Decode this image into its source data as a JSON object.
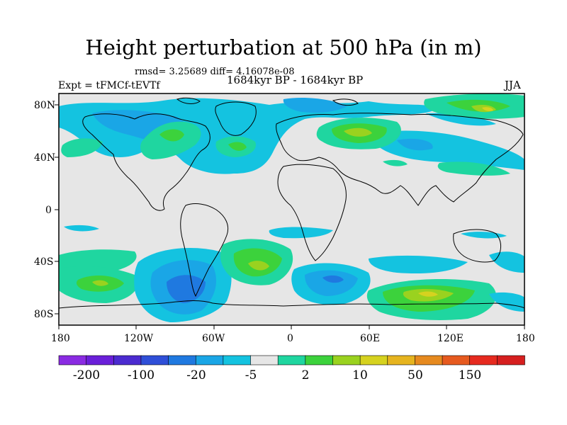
{
  "title": "Height perturbation at 500 hPa (in m)",
  "stats": "rmsd= 3.25689  diff= 4.16078e-08",
  "expt": "Expt = tFMCf-tEVTf",
  "period": "1684kyr BP - 1684kyr BP",
  "season": "JJA",
  "lat_ticks": [
    "80N",
    "40N",
    "0",
    "40S",
    "80S"
  ],
  "lon_ticks": [
    "180",
    "120W",
    "60W",
    "0",
    "60E",
    "120E",
    "180"
  ],
  "colorbar": {
    "colors": [
      "#8a2be2",
      "#6a1fd9",
      "#4b2bd0",
      "#2f4fd8",
      "#1f79e0",
      "#1aa6e6",
      "#14c3e0",
      "#e6e6e6",
      "#1fd6a0",
      "#3cd23c",
      "#9ad21f",
      "#d6d21f",
      "#e6b41f",
      "#e68a1f",
      "#e65a1f",
      "#e62a1f",
      "#d61f1f"
    ],
    "labels": [
      "-200",
      "-100",
      "-20",
      "-5",
      "2",
      "10",
      "50",
      "150"
    ]
  }
}
